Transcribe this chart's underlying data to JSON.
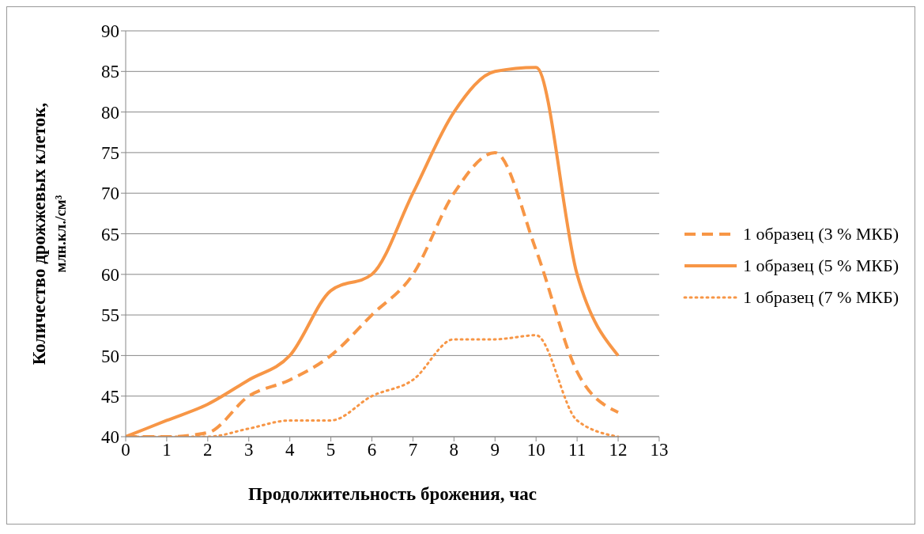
{
  "chart_data": {
    "type": "line",
    "xlabel": "Продолжительность брожения, час",
    "ylabel": "Количество дрожжевых клеток, млн.кл./см³",
    "x": [
      0,
      1,
      2,
      3,
      4,
      5,
      6,
      7,
      8,
      9,
      10,
      11,
      12
    ],
    "series": [
      {
        "name": "1 образец (3 % МКБ)",
        "color": "#f79646",
        "line_style": "dashed",
        "values": [
          40,
          40,
          40.5,
          45,
          47,
          50,
          55,
          60,
          70,
          75,
          63,
          48,
          43
        ]
      },
      {
        "name": "1 образец (5 % МКБ)",
        "color": "#f79646",
        "line_style": "solid",
        "values": [
          40,
          42,
          44,
          47,
          50,
          58,
          60,
          70,
          80,
          85,
          85.5,
          60,
          50
        ]
      },
      {
        "name": "1 образец (7 % МКБ)",
        "color": "#f79646",
        "line_style": "dotted",
        "values": [
          40,
          40,
          40,
          41,
          42,
          42,
          45,
          47,
          52,
          52,
          52.5,
          42,
          40
        ]
      }
    ],
    "xlim": [
      0,
      13
    ],
    "xticks": [
      0,
      1,
      2,
      3,
      4,
      5,
      6,
      7,
      8,
      9,
      10,
      11,
      12,
      13
    ],
    "ylim": [
      40,
      90
    ],
    "yticks": [
      40,
      45,
      50,
      55,
      60,
      65,
      70,
      75,
      80,
      85,
      90
    ],
    "grid": "y",
    "legend": "right",
    "marker": "none"
  }
}
